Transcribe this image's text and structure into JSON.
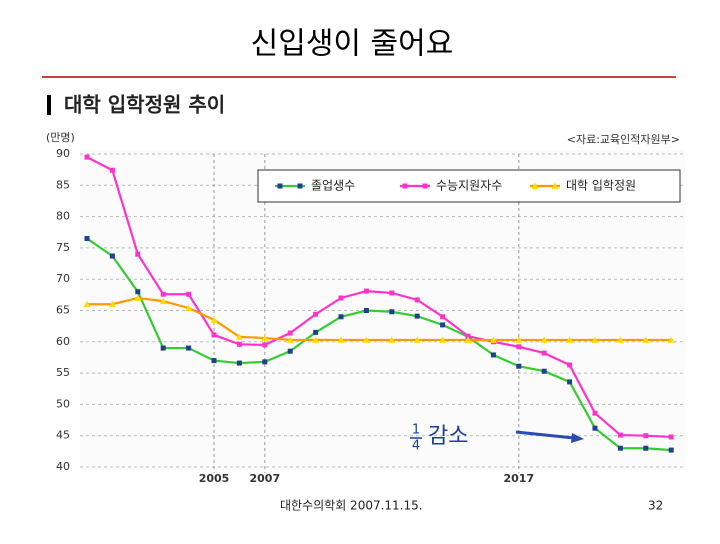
{
  "slide_title": "신입생이 줄어요",
  "footer": {
    "source": "대한수의학회 2007.11.15.",
    "page": "32"
  },
  "chart_data": {
    "type": "line",
    "title": "대학 입학정원 추이",
    "unit": "(만명)",
    "source": "<자료:교육인적자원부>",
    "categories": [
      null,
      null,
      null,
      null,
      null,
      "2005",
      null,
      "2007",
      null,
      null,
      null,
      null,
      null,
      null,
      null,
      null,
      null,
      "2017",
      null,
      null,
      null,
      null,
      null,
      null
    ],
    "series": [
      {
        "name": "졸업생수",
        "color": "#33cc33",
        "marker_color": "#1f3f8f",
        "marker": "square",
        "values": [
          76.5,
          73.7,
          68,
          59,
          59,
          57,
          56.6,
          56.8,
          58.5,
          61.5,
          64,
          65,
          64.8,
          64.1,
          62.7,
          60.8,
          57.9,
          56.1,
          55.3,
          53.6,
          46.2,
          43,
          43,
          42.7
        ]
      },
      {
        "name": "수능지원자수",
        "color": "#ff33cc",
        "marker_color": "#ff33cc",
        "marker": "square",
        "values": [
          89.5,
          87.4,
          74,
          67.6,
          67.6,
          61.1,
          59.6,
          59.5,
          61.4,
          64.4,
          67,
          68.1,
          67.8,
          66.7,
          64,
          60.9,
          60,
          59.2,
          58.2,
          56.3,
          48.6,
          45.1,
          45,
          44.8
        ]
      },
      {
        "name": "대학 입학정원",
        "color": "#ff9900",
        "marker_color": "#ffdd00",
        "marker": "triangle",
        "values": [
          66,
          66,
          67,
          66.5,
          65.4,
          63.5,
          60.8,
          60.6,
          60.3,
          60.3,
          60.3,
          60.3,
          60.3,
          60.3,
          60.3,
          60.3,
          60.3,
          60.3,
          60.3,
          60.3,
          60.3,
          60.3,
          60.3,
          60.3
        ]
      }
    ],
    "ylim": [
      40,
      90
    ],
    "yticks": [
      40,
      45,
      50,
      55,
      60,
      65,
      70,
      75,
      80,
      85,
      90
    ],
    "grid": true,
    "legend": "top-right",
    "annotation": {
      "numerator": "1",
      "denominator": "4",
      "text": "감소"
    }
  }
}
